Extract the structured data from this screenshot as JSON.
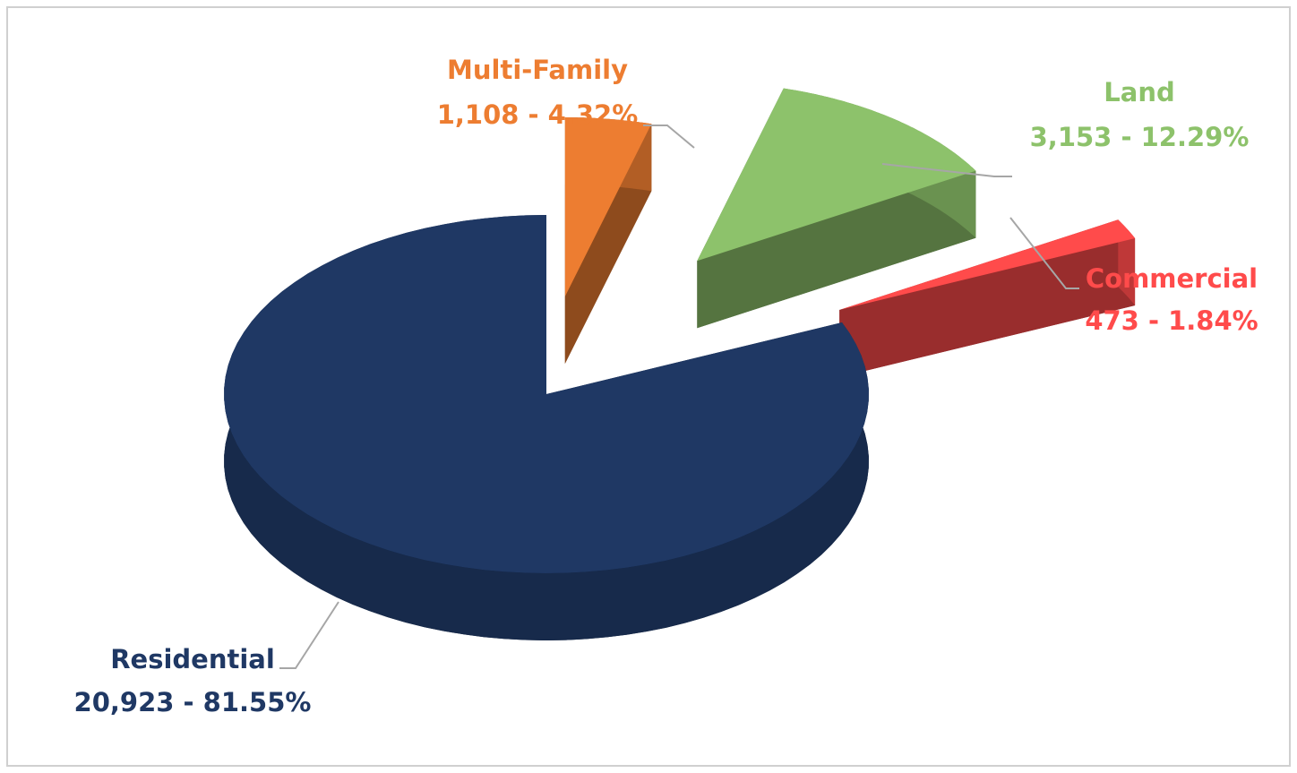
{
  "chart_data": {
    "type": "pie",
    "categories": [
      "Multi-Family",
      "Land",
      "Commercial",
      "Residential"
    ],
    "values": [
      1108,
      3153,
      473,
      20923
    ],
    "value_labels": [
      "1,108 - 4.32%",
      "3,153 - 12.29%",
      "473 - 1.84%",
      "20,923 - 81.55%"
    ],
    "colors": [
      "#ed7d31",
      "#8dc26b",
      "#ff4b4b",
      "#1f3864"
    ]
  }
}
